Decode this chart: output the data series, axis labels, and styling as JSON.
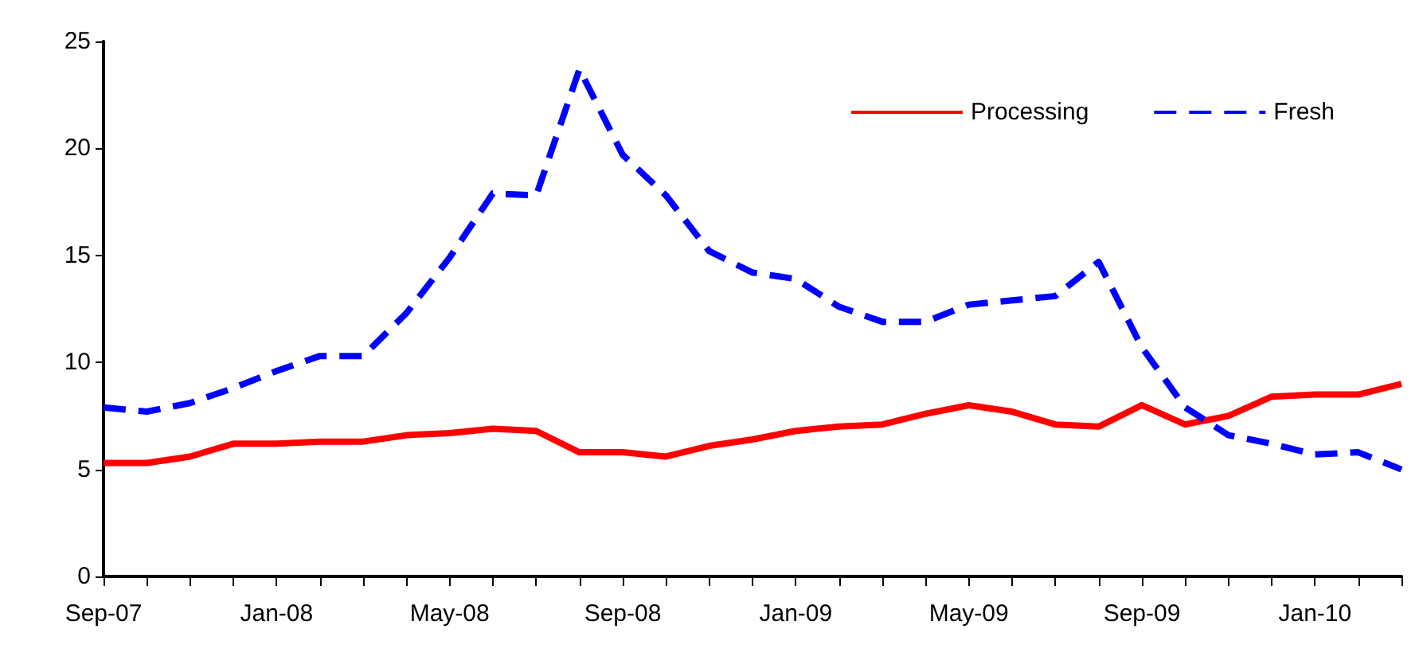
{
  "chart_data": {
    "type": "line",
    "categories": [
      "Sep-07",
      null,
      null,
      null,
      "Jan-08",
      null,
      null,
      null,
      "May-08",
      null,
      null,
      null,
      "Sep-08",
      null,
      null,
      null,
      "Jan-09",
      null,
      null,
      null,
      "May-09",
      null,
      null,
      null,
      "Sep-09",
      null,
      null,
      null,
      "Jan-10",
      null,
      null
    ],
    "series": [
      {
        "name": "Processing",
        "color": "#ff0000",
        "line_style": "solid",
        "values": [
          5.3,
          5.3,
          5.6,
          6.2,
          6.2,
          6.3,
          6.3,
          6.6,
          6.7,
          6.9,
          6.8,
          5.8,
          5.8,
          5.6,
          6.1,
          6.4,
          6.8,
          7.0,
          7.1,
          7.6,
          8.0,
          7.7,
          7.1,
          7.0,
          8.0,
          7.1,
          7.5,
          8.4,
          8.5,
          8.5,
          9.0
        ]
      },
      {
        "name": "Fresh",
        "color": "#0000ff",
        "line_style": "dashed",
        "values": [
          7.9,
          7.7,
          8.1,
          8.8,
          9.6,
          10.3,
          10.3,
          12.3,
          14.9,
          17.9,
          17.8,
          23.7,
          19.7,
          17.8,
          15.2,
          14.2,
          13.9,
          12.6,
          11.9,
          11.9,
          12.7,
          12.9,
          13.1,
          14.7,
          10.7,
          7.9,
          6.6,
          6.2,
          5.7,
          5.8,
          5.0
        ]
      }
    ],
    "ylim": [
      0,
      25
    ],
    "yticks": [
      0,
      5,
      10,
      15,
      20,
      25
    ],
    "grid": false,
    "legend": "top right",
    "marker": "none"
  }
}
